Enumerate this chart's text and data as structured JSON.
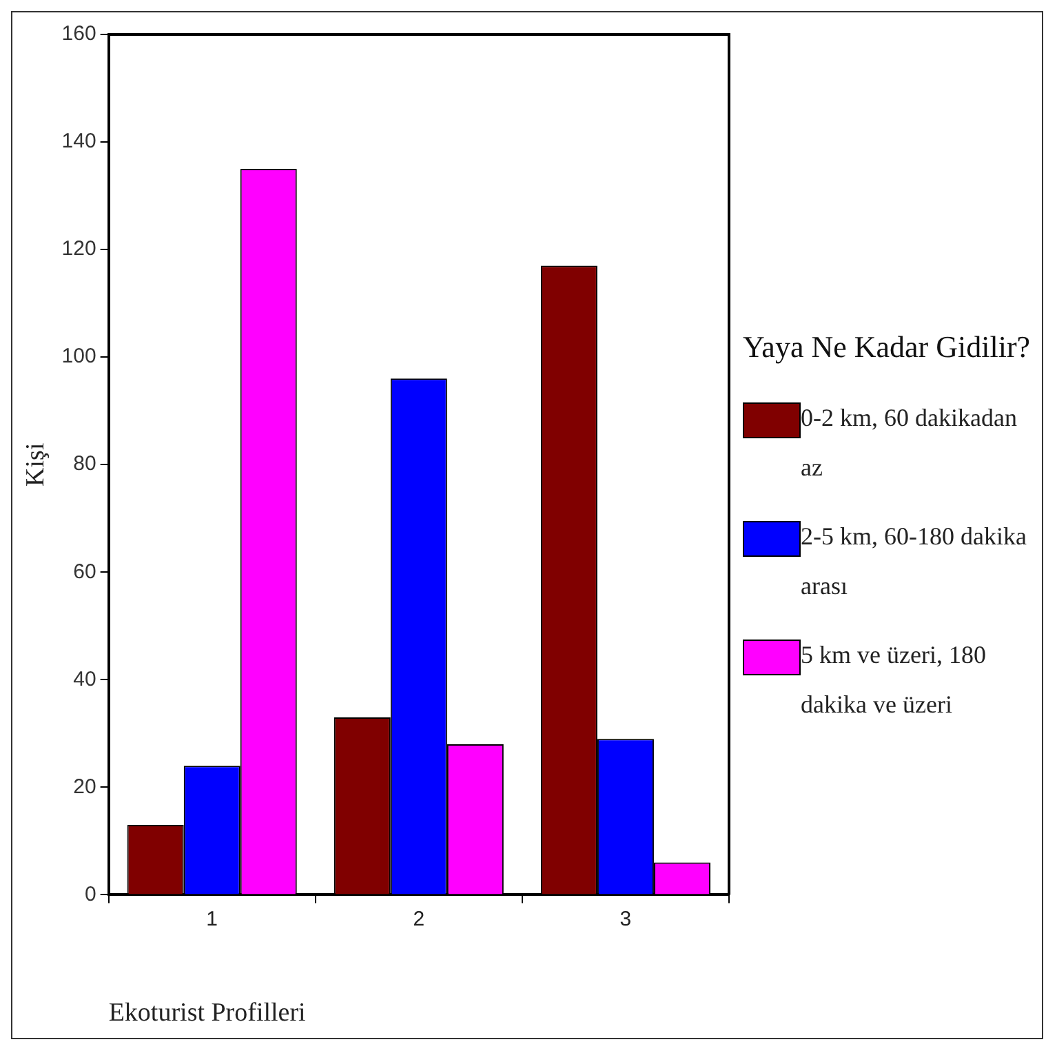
{
  "chart_data": {
    "type": "bar",
    "xlabel": "Ekoturist Profilleri",
    "ylabel": "Kişi",
    "legend_title": "Yaya Ne Kadar Gidilir?",
    "legend": "right",
    "grid": false,
    "categories": [
      "1",
      "2",
      "3"
    ],
    "ylim": [
      0,
      160
    ],
    "yticks": [
      0,
      20,
      40,
      60,
      80,
      100,
      120,
      140,
      160
    ],
    "series": [
      {
        "name": "0-2 km, 60 dakikadan az",
        "color": "#800000",
        "values": [
          13,
          33,
          117
        ]
      },
      {
        "name": "2-5 km, 60-180 dakika arası",
        "color": "#0000ff",
        "values": [
          24,
          96,
          29
        ]
      },
      {
        "name": "5 km ve üzeri, 180 dakika ve üzeri",
        "color": "#ff00ff",
        "values": [
          135,
          28,
          6
        ]
      }
    ]
  }
}
